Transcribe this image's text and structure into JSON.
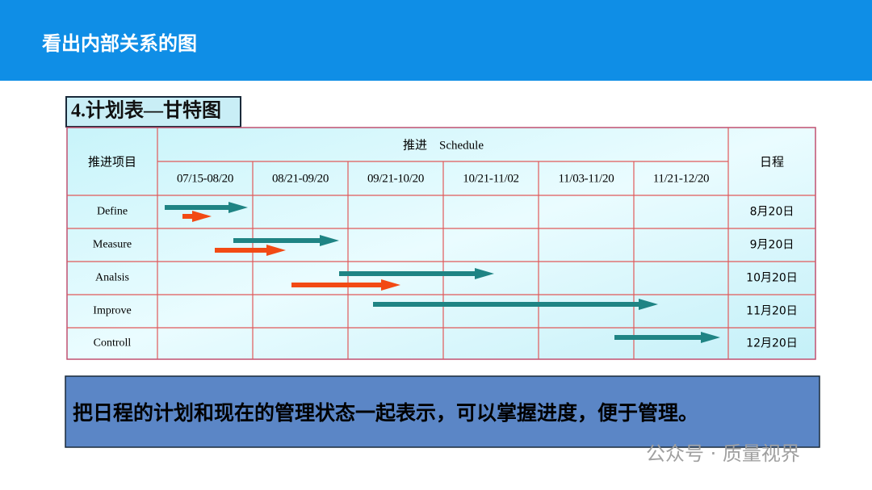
{
  "header": {
    "title": "看出内部关系的图"
  },
  "section_label": "4.计划表—甘特图",
  "table": {
    "item_header": "推进项目",
    "schedule_header": "推进　Schedule",
    "date_header": "日程",
    "periods": [
      "07/15-08/20",
      "08/21-09/20",
      "09/21-10/20",
      "10/21-11/02",
      "11/03-11/20",
      "11/21-12/20"
    ],
    "rows": [
      [
        "Define",
        "8月20日"
      ],
      [
        "Measure",
        "9月20日"
      ],
      [
        "Analsis",
        "10月20日"
      ],
      [
        "Improve",
        "11月20日"
      ],
      [
        "Controll",
        "12月20日"
      ]
    ]
  },
  "caption": "把日程的计划和现在的管理状态一起表示，可以掌握进度，便于管理。",
  "watermark": "公众号 · 质量视界"
}
